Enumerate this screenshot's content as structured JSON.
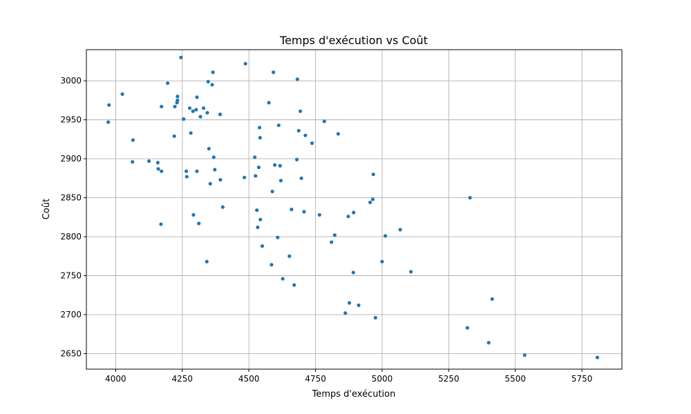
{
  "chart_data": {
    "type": "scatter",
    "title": "Temps d'exécution vs Coût",
    "xlabel": "Temps d'exécution",
    "ylabel": "Coût",
    "xlim": [
      3890,
      5900
    ],
    "ylim": [
      2630,
      3040
    ],
    "xticks": [
      4000,
      4250,
      4500,
      4750,
      5000,
      5250,
      5500,
      5750
    ],
    "yticks": [
      2650,
      2700,
      2750,
      2800,
      2850,
      2900,
      2950,
      3000
    ],
    "grid": true,
    "marker_color": "#1f77b4",
    "points": [
      {
        "x": 3975,
        "y": 2969
      },
      {
        "x": 3972,
        "y": 2947
      },
      {
        "x": 4025,
        "y": 2983
      },
      {
        "x": 4065,
        "y": 2924
      },
      {
        "x": 4063,
        "y": 2896
      },
      {
        "x": 4125,
        "y": 2897
      },
      {
        "x": 4158,
        "y": 2895
      },
      {
        "x": 4160,
        "y": 2887
      },
      {
        "x": 4172,
        "y": 2884
      },
      {
        "x": 4170,
        "y": 2816
      },
      {
        "x": 4172,
        "y": 2967
      },
      {
        "x": 4195,
        "y": 2997
      },
      {
        "x": 4220,
        "y": 2929
      },
      {
        "x": 4222,
        "y": 2967
      },
      {
        "x": 4230,
        "y": 2972
      },
      {
        "x": 4232,
        "y": 2975
      },
      {
        "x": 4232,
        "y": 2980
      },
      {
        "x": 4245,
        "y": 3030
      },
      {
        "x": 4255,
        "y": 2951
      },
      {
        "x": 4265,
        "y": 2884
      },
      {
        "x": 4267,
        "y": 2877
      },
      {
        "x": 4278,
        "y": 2965
      },
      {
        "x": 4282,
        "y": 2933
      },
      {
        "x": 4290,
        "y": 2961
      },
      {
        "x": 4292,
        "y": 2828
      },
      {
        "x": 4302,
        "y": 2963
      },
      {
        "x": 4305,
        "y": 2979
      },
      {
        "x": 4305,
        "y": 2884
      },
      {
        "x": 4312,
        "y": 2817
      },
      {
        "x": 4318,
        "y": 2954
      },
      {
        "x": 4330,
        "y": 2965
      },
      {
        "x": 4342,
        "y": 2768
      },
      {
        "x": 4344,
        "y": 2959
      },
      {
        "x": 4347,
        "y": 2999
      },
      {
        "x": 4350,
        "y": 2913
      },
      {
        "x": 4355,
        "y": 2868
      },
      {
        "x": 4362,
        "y": 2995
      },
      {
        "x": 4365,
        "y": 3011
      },
      {
        "x": 4368,
        "y": 2902
      },
      {
        "x": 4372,
        "y": 2886
      },
      {
        "x": 4392,
        "y": 2957
      },
      {
        "x": 4393,
        "y": 2873
      },
      {
        "x": 4402,
        "y": 2838
      },
      {
        "x": 4483,
        "y": 2876
      },
      {
        "x": 4487,
        "y": 3022
      },
      {
        "x": 4522,
        "y": 2902
      },
      {
        "x": 4525,
        "y": 2878
      },
      {
        "x": 4530,
        "y": 2834
      },
      {
        "x": 4533,
        "y": 2812
      },
      {
        "x": 4537,
        "y": 2889
      },
      {
        "x": 4540,
        "y": 2940
      },
      {
        "x": 4542,
        "y": 2927
      },
      {
        "x": 4543,
        "y": 2822
      },
      {
        "x": 4550,
        "y": 2788
      },
      {
        "x": 4575,
        "y": 2972
      },
      {
        "x": 4585,
        "y": 2764
      },
      {
        "x": 4588,
        "y": 2858
      },
      {
        "x": 4592,
        "y": 3011
      },
      {
        "x": 4597,
        "y": 2892
      },
      {
        "x": 4608,
        "y": 2799
      },
      {
        "x": 4612,
        "y": 2943
      },
      {
        "x": 4617,
        "y": 2891
      },
      {
        "x": 4620,
        "y": 2872
      },
      {
        "x": 4627,
        "y": 2746
      },
      {
        "x": 4652,
        "y": 2775
      },
      {
        "x": 4660,
        "y": 2835
      },
      {
        "x": 4670,
        "y": 2738
      },
      {
        "x": 4680,
        "y": 2899
      },
      {
        "x": 4682,
        "y": 3002
      },
      {
        "x": 4687,
        "y": 2936
      },
      {
        "x": 4693,
        "y": 2961
      },
      {
        "x": 4697,
        "y": 2875
      },
      {
        "x": 4707,
        "y": 2832
      },
      {
        "x": 4712,
        "y": 2930
      },
      {
        "x": 4737,
        "y": 2920
      },
      {
        "x": 4765,
        "y": 2828
      },
      {
        "x": 4783,
        "y": 2948
      },
      {
        "x": 4810,
        "y": 2793
      },
      {
        "x": 4822,
        "y": 2802
      },
      {
        "x": 4835,
        "y": 2932
      },
      {
        "x": 4862,
        "y": 2702
      },
      {
        "x": 4873,
        "y": 2826
      },
      {
        "x": 4877,
        "y": 2715
      },
      {
        "x": 4892,
        "y": 2754
      },
      {
        "x": 4893,
        "y": 2831
      },
      {
        "x": 4912,
        "y": 2712
      },
      {
        "x": 4955,
        "y": 2844
      },
      {
        "x": 4965,
        "y": 2848
      },
      {
        "x": 4967,
        "y": 2880
      },
      {
        "x": 4975,
        "y": 2696
      },
      {
        "x": 5000,
        "y": 2768
      },
      {
        "x": 5012,
        "y": 2801
      },
      {
        "x": 5068,
        "y": 2809
      },
      {
        "x": 5108,
        "y": 2755
      },
      {
        "x": 5320,
        "y": 2683
      },
      {
        "x": 5330,
        "y": 2850
      },
      {
        "x": 5400,
        "y": 2664
      },
      {
        "x": 5413,
        "y": 2720
      },
      {
        "x": 5535,
        "y": 2648
      },
      {
        "x": 5808,
        "y": 2645
      }
    ]
  }
}
